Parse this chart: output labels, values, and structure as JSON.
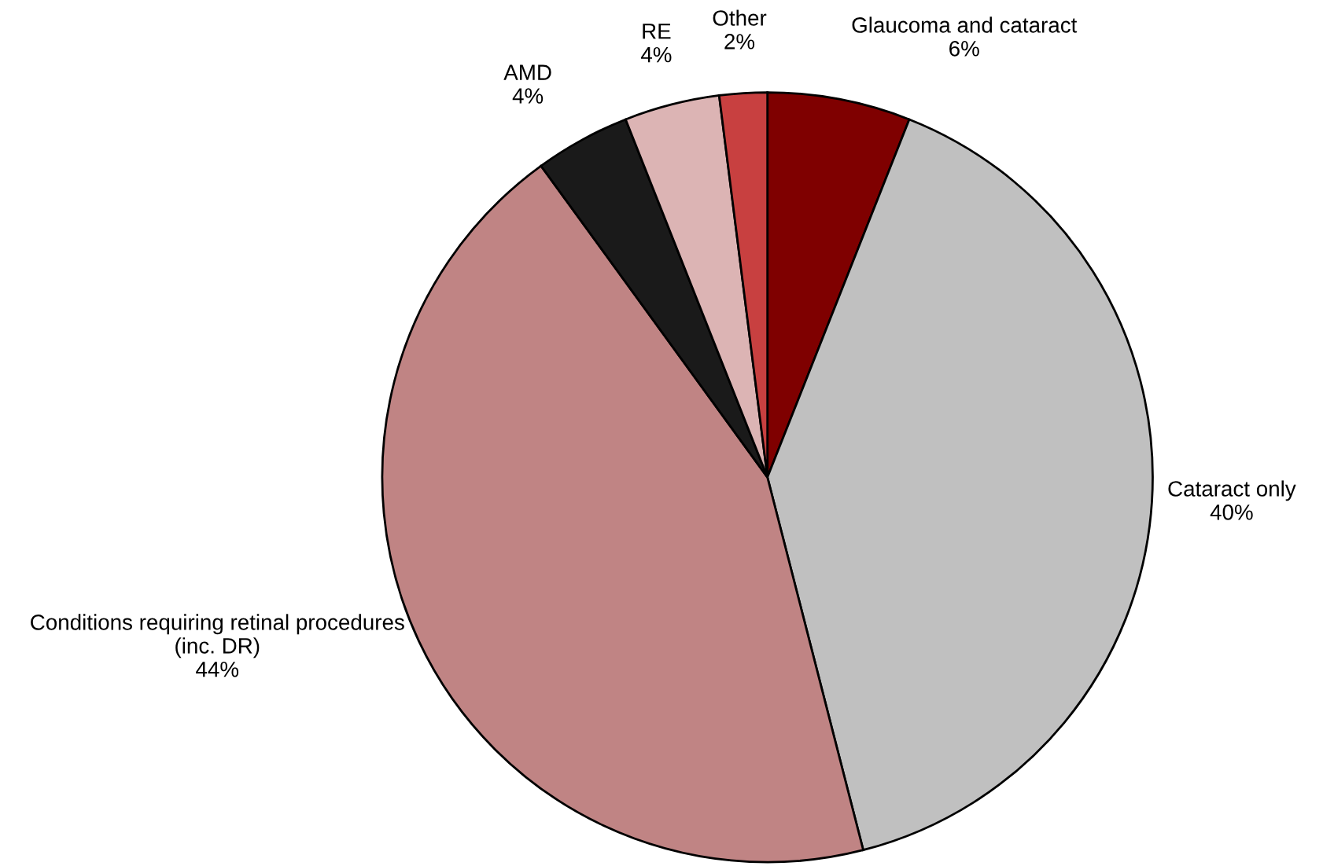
{
  "chart_data": {
    "type": "pie",
    "categories": [
      "Glaucoma and cataract",
      "Cataract only",
      "Conditions requiring retinal procedures (inc. DR)",
      "AMD",
      "RE",
      "Other"
    ],
    "values": [
      6,
      40,
      44,
      4,
      4,
      2
    ],
    "value_labels": [
      "6%",
      "40%",
      "44%",
      "4%",
      "4%",
      "2%"
    ],
    "colors": [
      "#7f0000",
      "#c0c0c0",
      "#c08484",
      "#1a1a1a",
      "#dcb4b4",
      "#c84040"
    ]
  }
}
